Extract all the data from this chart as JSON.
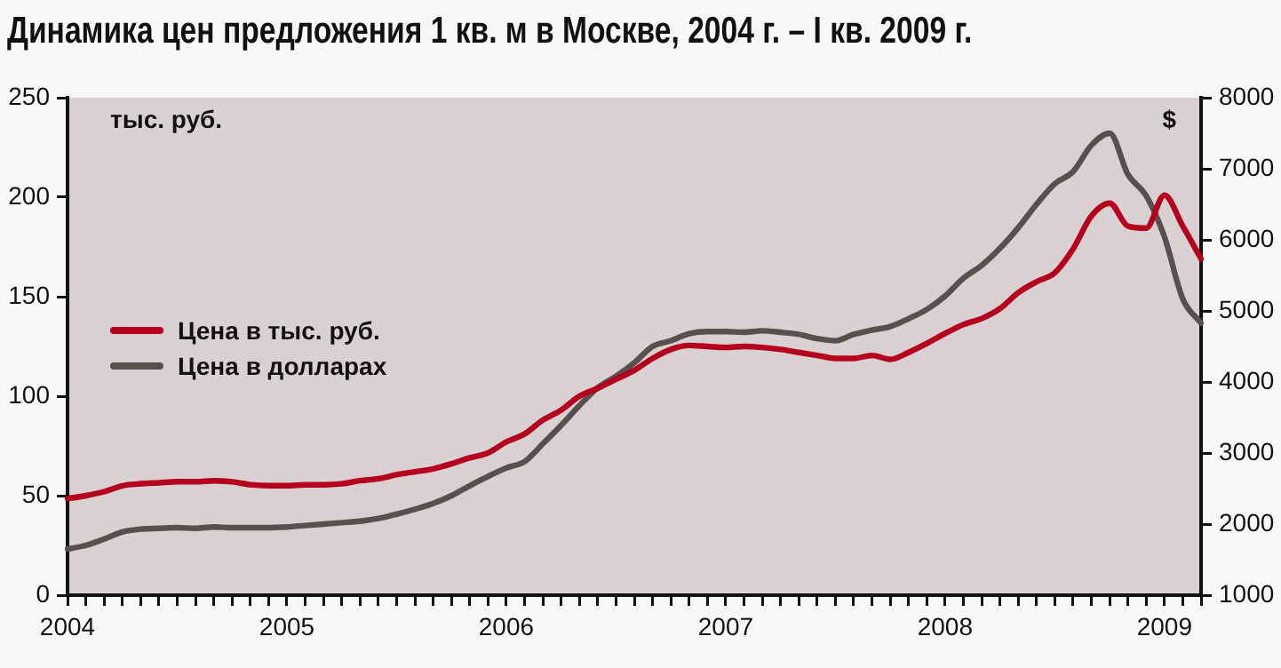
{
  "chart_data": {
    "type": "line",
    "title": "Динамика цен предложения 1 кв. м в Москве, 2004 г. – I кв. 2009 г.",
    "ylabel": "тыс. руб.",
    "y2label": "$",
    "categories": [
      "2004",
      null,
      null,
      null,
      null,
      null,
      null,
      null,
      null,
      null,
      null,
      null,
      "2005",
      null,
      null,
      null,
      null,
      null,
      null,
      null,
      null,
      null,
      null,
      null,
      "2006",
      null,
      null,
      null,
      null,
      null,
      null,
      null,
      null,
      null,
      null,
      null,
      "2007",
      null,
      null,
      null,
      null,
      null,
      null,
      null,
      null,
      null,
      null,
      null,
      "2008",
      null,
      null,
      null,
      null,
      null,
      null,
      null,
      null,
      null,
      null,
      null,
      "2009",
      null,
      null
    ],
    "series": [
      {
        "name": "Цена в тыс. руб.",
        "color": "#b5001e",
        "values": [
          48.5,
          50,
          52,
          55,
          56,
          56.5,
          57,
          57,
          57.5,
          57,
          55.5,
          55,
          55,
          55.5,
          55.5,
          56,
          57.5,
          58.5,
          60.5,
          62,
          63.5,
          66,
          69,
          71.5,
          77,
          81,
          88,
          93,
          100,
          104,
          108.5,
          113,
          119,
          123.5,
          125.5,
          125,
          124.5,
          125,
          124.5,
          123.5,
          122,
          120.5,
          119,
          119,
          120.5,
          118.5,
          122,
          126.5,
          131.5,
          136,
          139,
          144,
          152,
          157.5,
          162,
          174,
          190.5,
          197,
          185.5,
          184.5,
          201,
          185.5,
          169
        ]
      },
      {
        "name": "Цена в долларах",
        "color": "#5a4e4e",
        "axis": "y2",
        "values": [
          1650,
          1700,
          1790,
          1890,
          1930,
          1940,
          1950,
          1940,
          1960,
          1950,
          1950,
          1950,
          1960,
          1980,
          2000,
          2020,
          2040,
          2080,
          2140,
          2210,
          2290,
          2400,
          2540,
          2670,
          2790,
          2880,
          3130,
          3390,
          3670,
          3920,
          4080,
          4270,
          4500,
          4580,
          4680,
          4710,
          4710,
          4700,
          4720,
          4700,
          4670,
          4610,
          4580,
          4670,
          4730,
          4780,
          4890,
          5020,
          5210,
          5460,
          5640,
          5880,
          6170,
          6500,
          6790,
          6960,
          7330,
          7500,
          6920,
          6620,
          6040,
          5170,
          4830
        ]
      }
    ],
    "ylim": [
      0,
      250
    ],
    "yticks": [
      0,
      50,
      100,
      150,
      200,
      250
    ],
    "y2lim": [
      1000,
      8000
    ],
    "y2ticks": [
      1000,
      2000,
      3000,
      4000,
      5000,
      6000,
      7000,
      8000
    ],
    "grid": false,
    "legend": "left",
    "marker": "none",
    "line_style": "solid"
  }
}
